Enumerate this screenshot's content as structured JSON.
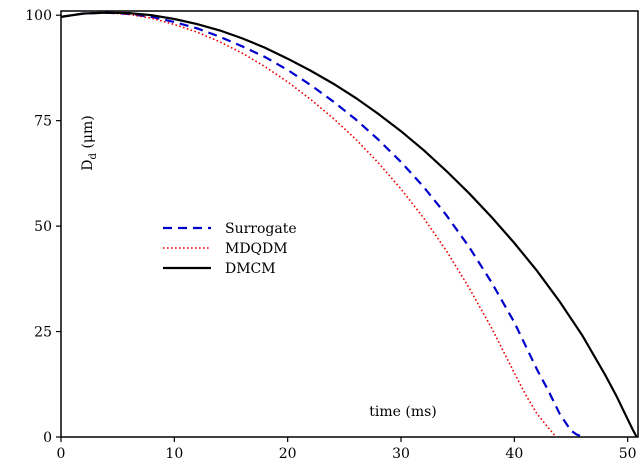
{
  "chart_data": {
    "type": "line",
    "title": "",
    "xlabel": "time (ms)",
    "ylabel_main": "D",
    "ylabel_sub": "d",
    "ylabel_unit": "(μm)",
    "xlim": [
      0,
      51
    ],
    "ylim": [
      0,
      101
    ],
    "xticks": [
      0,
      10,
      20,
      30,
      40,
      50
    ],
    "yticks": [
      0,
      25,
      50,
      75,
      100
    ],
    "grid": false,
    "legend_position": "center-left",
    "series": [
      {
        "name": "Surrogate",
        "color": "#0000cc",
        "style": "dashed",
        "x": [
          0,
          2,
          4,
          6,
          8,
          10,
          12,
          14,
          16,
          18,
          20,
          22,
          24,
          26,
          28,
          30,
          32,
          34,
          36,
          38,
          40,
          42,
          43,
          44,
          45,
          45.5,
          46,
          46.1
        ],
        "y": [
          99.6,
          100.4,
          100.6,
          100.3,
          99.6,
          98.4,
          96.9,
          94.9,
          92.6,
          90.1,
          87.0,
          83.5,
          79.6,
          75.3,
          70.5,
          65.2,
          59.3,
          52.6,
          45.1,
          36.6,
          27.2,
          16.0,
          11.0,
          5.5,
          1.5,
          0.6,
          0.1,
          0
        ]
      },
      {
        "name": "MDQDM",
        "color": "#ee0000",
        "style": "dotted",
        "x": [
          0,
          2,
          4,
          6,
          8,
          10,
          12,
          14,
          16,
          18,
          20,
          22,
          24,
          26,
          28,
          30,
          32,
          34,
          36,
          38,
          40,
          41,
          42,
          43,
          43.5,
          43.7
        ],
        "y": [
          99.6,
          100.4,
          100.6,
          100.2,
          99.3,
          97.8,
          96.0,
          93.7,
          91.0,
          87.8,
          84.2,
          80.1,
          75.6,
          70.6,
          65.0,
          58.8,
          51.9,
          44.2,
          35.4,
          25.8,
          15.2,
          10.0,
          5.5,
          2.2,
          0.6,
          0
        ]
      },
      {
        "name": "DMCM",
        "color": "#000000",
        "style": "solid",
        "x": [
          0,
          2,
          4,
          6,
          8,
          10,
          12,
          14,
          16,
          18,
          20,
          22,
          24,
          26,
          28,
          30,
          32,
          34,
          36,
          38,
          40,
          42,
          44,
          46,
          48,
          49,
          50,
          50.5,
          50.8
        ],
        "y": [
          99.6,
          100.4,
          100.6,
          100.5,
          100.0,
          99.1,
          97.9,
          96.4,
          94.5,
          92.3,
          89.7,
          86.9,
          83.8,
          80.4,
          76.6,
          72.5,
          68.0,
          63.1,
          57.8,
          52.1,
          46.0,
          39.4,
          32.1,
          24.1,
          14.8,
          9.8,
          4.2,
          1.5,
          0
        ]
      }
    ]
  }
}
